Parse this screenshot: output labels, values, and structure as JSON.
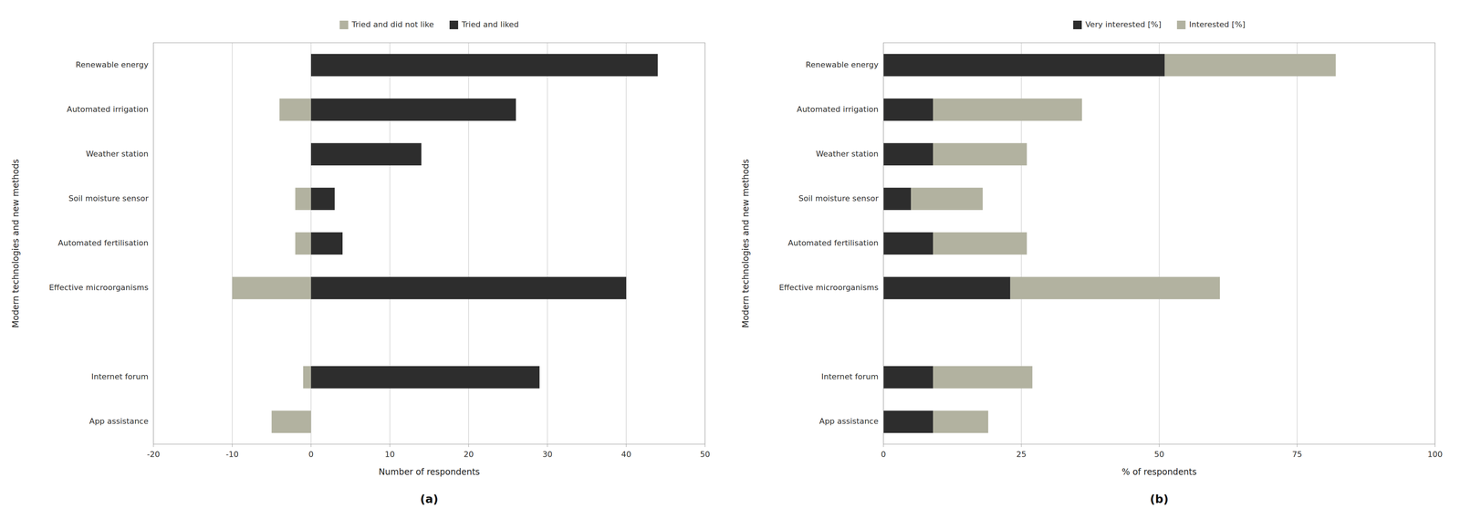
{
  "chart_data": [
    {
      "type": "bar",
      "orientation": "horizontal",
      "stacked": true,
      "grid": true,
      "legend": "top",
      "title": "(a)",
      "xlabel": "Number of respondents",
      "ylabel": "Modern technologies and new methods",
      "categories": [
        "Renewable energy",
        "Automated irrigation",
        "Weather station",
        "Soil moisture sensor",
        "Automated fertilisation",
        "Effective microorganisms",
        null,
        "Internet forum",
        "App assistance"
      ],
      "series": [
        {
          "name": "Tried and did not like",
          "color": "#b2b2a0",
          "values": [
            0,
            -4,
            0,
            -2,
            -2,
            -10,
            0,
            -1,
            -5
          ]
        },
        {
          "name": "Tried and liked",
          "color": "#2d2d2d",
          "values": [
            44,
            26,
            14,
            3,
            4,
            40,
            0,
            29,
            0
          ]
        }
      ],
      "xlim": [
        -20,
        50
      ],
      "xticks": [
        -20,
        -10,
        0,
        10,
        20,
        30,
        40,
        50
      ]
    },
    {
      "type": "bar",
      "orientation": "horizontal",
      "stacked": true,
      "grid": true,
      "legend": "top",
      "title": "(b)",
      "xlabel": "% of respondents",
      "ylabel": "Modern technologies and new methods",
      "categories": [
        "Renewable energy",
        "Automated irrigation",
        "Weather station",
        "Soil moisture sensor",
        "Automated fertilisation",
        "Effective microorganisms",
        null,
        "Internet forum",
        "App assistance"
      ],
      "series": [
        {
          "name": "Very interested [%]",
          "color": "#2d2d2d",
          "values": [
            51,
            9,
            9,
            5,
            9,
            23,
            0,
            9,
            9
          ]
        },
        {
          "name": "Interested [%]",
          "color": "#b2b2a0",
          "values": [
            31,
            27,
            17,
            13,
            17,
            38,
            0,
            18,
            10
          ]
        }
      ],
      "xlim": [
        0,
        100
      ],
      "xticks": [
        0,
        25,
        50,
        75,
        100
      ]
    }
  ]
}
